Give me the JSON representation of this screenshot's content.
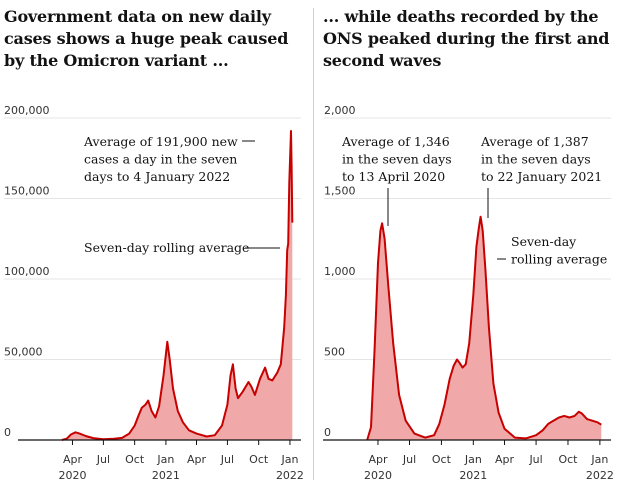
{
  "titles": {
    "left": "Government data on new daily cases shows a huge peak caused by the Omicron variant ...",
    "right": "... while deaths recorded by the ONS peaked during the first and second waves"
  },
  "colors": {
    "line": "#c70000",
    "fill": "#f0a8a8",
    "grid": "#e5e5e5",
    "axis": "#121212"
  },
  "x_months": [
    {
      "label": "Apr",
      "year": "2020",
      "date": "2020-04-01"
    },
    {
      "label": "Jul",
      "year": "",
      "date": "2020-07-01"
    },
    {
      "label": "Oct",
      "year": "",
      "date": "2020-10-01"
    },
    {
      "label": "Jan",
      "year": "2021",
      "date": "2021-01-01"
    },
    {
      "label": "Apr",
      "year": "",
      "date": "2021-04-01"
    },
    {
      "label": "Jul",
      "year": "",
      "date": "2021-07-01"
    },
    {
      "label": "Oct",
      "year": "",
      "date": "2021-10-01"
    },
    {
      "label": "Jan",
      "year": "2022",
      "date": "2022-01-01"
    }
  ],
  "chart_data": [
    {
      "type": "area",
      "title": "Government data on new daily cases shows a huge peak caused by the Omicron variant ...",
      "ylim": [
        0,
        200000
      ],
      "yticks": [
        0,
        50000,
        100000,
        150000,
        200000
      ],
      "ytick_labels": [
        "0",
        "50,000",
        "100,000",
        "150,000",
        "200,000"
      ],
      "xlim": [
        "2020-01-20",
        "2022-01-10"
      ],
      "series": [
        {
          "name": "Seven-day rolling average",
          "points": [
            [
              "2020-03-01",
              0
            ],
            [
              "2020-03-15",
              800
            ],
            [
              "2020-03-28",
              3500
            ],
            [
              "2020-04-10",
              4800
            ],
            [
              "2020-04-22",
              4000
            ],
            [
              "2020-05-10",
              2500
            ],
            [
              "2020-06-01",
              1200
            ],
            [
              "2020-07-01",
              500
            ],
            [
              "2020-08-01",
              800
            ],
            [
              "2020-08-25",
              1300
            ],
            [
              "2020-09-15",
              4000
            ],
            [
              "2020-10-01",
              9000
            ],
            [
              "2020-10-12",
              15000
            ],
            [
              "2020-10-22",
              20000
            ],
            [
              "2020-11-02",
              22000
            ],
            [
              "2020-11-10",
              24500
            ],
            [
              "2020-11-20",
              18000
            ],
            [
              "2020-12-01",
              14000
            ],
            [
              "2020-12-12",
              21000
            ],
            [
              "2020-12-25",
              40000
            ],
            [
              "2021-01-05",
              61000
            ],
            [
              "2021-01-12",
              50000
            ],
            [
              "2021-01-22",
              32000
            ],
            [
              "2021-02-05",
              18000
            ],
            [
              "2021-02-20",
              11000
            ],
            [
              "2021-03-10",
              6000
            ],
            [
              "2021-04-01",
              4000
            ],
            [
              "2021-05-01",
              2200
            ],
            [
              "2021-05-25",
              3000
            ],
            [
              "2021-06-15",
              9000
            ],
            [
              "2021-07-01",
              22000
            ],
            [
              "2021-07-10",
              40000
            ],
            [
              "2021-07-17",
              47000
            ],
            [
              "2021-07-25",
              32000
            ],
            [
              "2021-08-01",
              26000
            ],
            [
              "2021-08-15",
              30000
            ],
            [
              "2021-09-01",
              36000
            ],
            [
              "2021-09-10",
              33000
            ],
            [
              "2021-09-20",
              28000
            ],
            [
              "2021-10-05",
              38000
            ],
            [
              "2021-10-20",
              45000
            ],
            [
              "2021-10-30",
              38000
            ],
            [
              "2021-11-10",
              37000
            ],
            [
              "2021-11-25",
              42000
            ],
            [
              "2021-12-05",
              47000
            ],
            [
              "2021-12-15",
              70000
            ],
            [
              "2021-12-20",
              90000
            ],
            [
              "2021-12-24",
              118000
            ],
            [
              "2021-12-27",
              122000
            ],
            [
              "2021-12-30",
              160000
            ],
            [
              "2022-01-04",
              191900
            ],
            [
              "2022-01-06",
              170000
            ],
            [
              "2022-01-08",
              135000
            ]
          ]
        }
      ],
      "annotations": [
        {
          "lines": [
            "Average of 191,900 new",
            "cases a day in the seven",
            "days to 4 January 2022"
          ]
        },
        {
          "lines": [
            "Seven-day rolling average"
          ]
        }
      ]
    },
    {
      "type": "area",
      "title": "... while deaths recorded by the ONS peaked during the first and second waves",
      "ylim": [
        0,
        2000
      ],
      "yticks": [
        0,
        500,
        1000,
        1500,
        2000
      ],
      "ytick_labels": [
        "0",
        "500",
        "1,000",
        "1,500",
        "2,000"
      ],
      "xlim": [
        "2020-01-20",
        "2022-01-10"
      ],
      "series": [
        {
          "name": "Seven-day rolling average",
          "points": [
            [
              "2020-03-01",
              0
            ],
            [
              "2020-03-12",
              80
            ],
            [
              "2020-03-22",
              550
            ],
            [
              "2020-04-01",
              1100
            ],
            [
              "2020-04-08",
              1300
            ],
            [
              "2020-04-13",
              1346
            ],
            [
              "2020-04-20",
              1250
            ],
            [
              "2020-05-01",
              950
            ],
            [
              "2020-05-15",
              600
            ],
            [
              "2020-06-01",
              280
            ],
            [
              "2020-06-20",
              120
            ],
            [
              "2020-07-15",
              40
            ],
            [
              "2020-08-15",
              15
            ],
            [
              "2020-09-10",
              30
            ],
            [
              "2020-09-25",
              100
            ],
            [
              "2020-10-10",
              220
            ],
            [
              "2020-10-25",
              380
            ],
            [
              "2020-11-05",
              460
            ],
            [
              "2020-11-15",
              500
            ],
            [
              "2020-11-22",
              480
            ],
            [
              "2020-12-01",
              450
            ],
            [
              "2020-12-10",
              470
            ],
            [
              "2020-12-20",
              600
            ],
            [
              "2021-01-01",
              900
            ],
            [
              "2021-01-10",
              1200
            ],
            [
              "2021-01-17",
              1320
            ],
            [
              "2021-01-22",
              1387
            ],
            [
              "2021-01-28",
              1300
            ],
            [
              "2021-02-05",
              1050
            ],
            [
              "2021-02-15",
              700
            ],
            [
              "2021-02-28",
              350
            ],
            [
              "2021-03-15",
              170
            ],
            [
              "2021-04-01",
              70
            ],
            [
              "2021-05-01",
              15
            ],
            [
              "2021-06-01",
              10
            ],
            [
              "2021-07-01",
              30
            ],
            [
              "2021-07-20",
              60
            ],
            [
              "2021-08-05",
              100
            ],
            [
              "2021-08-20",
              120
            ],
            [
              "2021-09-05",
              140
            ],
            [
              "2021-09-20",
              150
            ],
            [
              "2021-10-05",
              140
            ],
            [
              "2021-10-20",
              150
            ],
            [
              "2021-11-01",
              175
            ],
            [
              "2021-11-10",
              165
            ],
            [
              "2021-11-25",
              130
            ],
            [
              "2021-12-10",
              120
            ],
            [
              "2021-12-25",
              110
            ],
            [
              "2022-01-05",
              95
            ]
          ]
        }
      ],
      "annotations": [
        {
          "lines": [
            "Average of 1,346",
            "in the seven days",
            "to 13 April 2020"
          ]
        },
        {
          "lines": [
            "Average of 1,387",
            "in the seven days",
            "to 22 January 2021"
          ]
        },
        {
          "lines": [
            "Seven-day",
            "rolling average"
          ]
        }
      ]
    }
  ]
}
